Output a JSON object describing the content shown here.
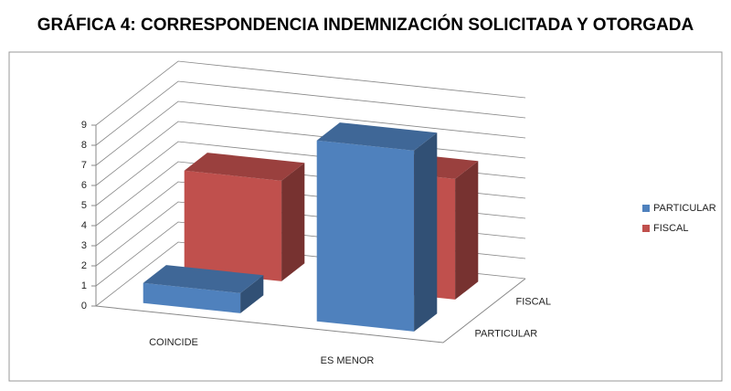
{
  "chart_data": {
    "type": "bar3d",
    "title": "GRÁFICA 4: CORRESPONDENCIA INDEMNIZACIÓN SOLICITADA Y OTORGADA",
    "categories": [
      "COINCIDE",
      "ES MENOR"
    ],
    "series": [
      {
        "name": "PARTICULAR",
        "color": "#4f81bd",
        "values": [
          1,
          9
        ]
      },
      {
        "name": "FISCAL",
        "color": "#c0504d",
        "values": [
          5,
          6
        ]
      }
    ],
    "ylim": [
      0,
      9
    ],
    "yticks": [
      0,
      1,
      2,
      3,
      4,
      5,
      6,
      7,
      8,
      9
    ],
    "grid": true,
    "legend": "right"
  }
}
